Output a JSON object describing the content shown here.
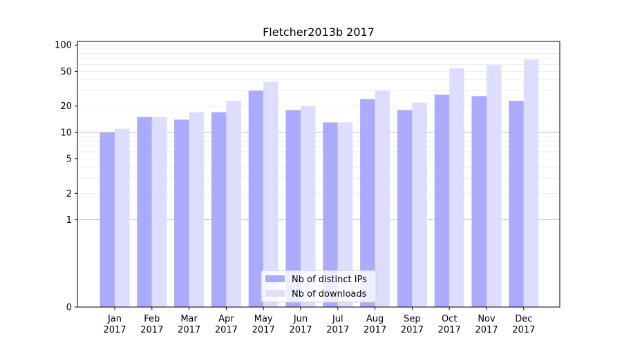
{
  "chart_data": {
    "type": "bar",
    "title": "Fletcher2013b 2017",
    "xlabel": "",
    "ylabel": "",
    "yscale": "symlog",
    "ylim": [
      0,
      110
    ],
    "yticks": [
      0,
      1,
      2,
      5,
      10,
      20,
      50,
      100
    ],
    "grid": true,
    "legend_position": "bottom-center",
    "categories": [
      [
        "Jan",
        "2017"
      ],
      [
        "Feb",
        "2017"
      ],
      [
        "Mar",
        "2017"
      ],
      [
        "Apr",
        "2017"
      ],
      [
        "May",
        "2017"
      ],
      [
        "Jun",
        "2017"
      ],
      [
        "Jul",
        "2017"
      ],
      [
        "Aug",
        "2017"
      ],
      [
        "Sep",
        "2017"
      ],
      [
        "Oct",
        "2017"
      ],
      [
        "Nov",
        "2017"
      ],
      [
        "Dec",
        "2017"
      ]
    ],
    "series": [
      {
        "name": "Nb of distinct IPs",
        "color": "#aaaaff",
        "values": [
          10,
          15,
          14,
          17,
          30,
          18,
          13,
          24,
          18,
          27,
          26,
          23
        ]
      },
      {
        "name": "Nb of downloads",
        "color": "#ddddff",
        "values": [
          11,
          15,
          17,
          23,
          38,
          20,
          13,
          30,
          22,
          54,
          59,
          68
        ]
      }
    ]
  }
}
